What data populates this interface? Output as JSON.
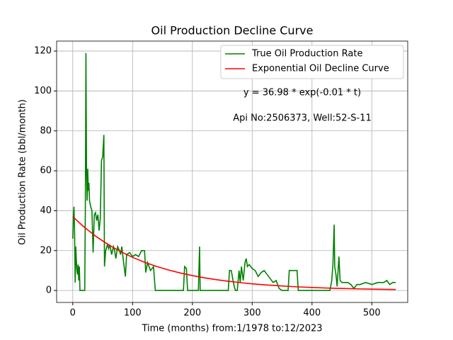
{
  "chart_data": {
    "type": "line",
    "title": "Oil Production Decline Curve",
    "xlabel": "Time (months) from:1/1978 to:12/2023",
    "ylabel": "Oil Production Rate (bbl/month)",
    "annotations": [
      "y = 36.98 * exp(-0.01 * t)",
      "Api No:2506373, Well:52-S-11"
    ],
    "xlim": [
      -27,
      560
    ],
    "ylim": [
      -6,
      125
    ],
    "xticks": [
      0,
      100,
      200,
      300,
      400,
      500
    ],
    "yticks": [
      0,
      20,
      40,
      60,
      80,
      100,
      120
    ],
    "grid": true,
    "legend": "upper right",
    "series": [
      {
        "name": "True Oil Production Rate",
        "color": "#008000",
        "x": [
          0,
          1,
          2,
          3,
          4,
          5,
          6,
          7,
          8,
          9,
          10,
          11,
          12,
          18,
          20,
          21,
          22,
          23,
          24,
          25,
          26,
          27,
          28,
          30,
          32,
          34,
          36,
          38,
          40,
          42,
          44,
          46,
          48,
          50,
          52,
          53,
          55,
          58,
          60,
          62,
          65,
          68,
          70,
          72,
          75,
          78,
          80,
          82,
          85,
          88,
          90,
          95,
          100,
          105,
          110,
          115,
          120,
          122,
          125,
          130,
          135,
          138,
          150,
          185,
          187,
          190,
          192,
          210,
          212,
          213,
          215,
          220,
          260,
          262,
          265,
          268,
          270,
          272,
          275,
          278,
          280,
          282,
          285,
          288,
          290,
          292,
          295,
          300,
          305,
          310,
          315,
          320,
          325,
          330,
          335,
          340,
          345,
          350,
          360,
          362,
          375,
          377,
          430,
          433,
          435,
          437,
          438,
          440,
          442,
          445,
          447,
          450,
          460,
          465,
          470,
          475,
          480,
          490,
          500,
          510,
          520,
          525,
          530,
          535,
          540
        ],
        "values": [
          26,
          37,
          42,
          30,
          4,
          22,
          15,
          10,
          8,
          13,
          5,
          12,
          0,
          0,
          0,
          40,
          119,
          60,
          45,
          61,
          50,
          54,
          45,
          42,
          40,
          19,
          38,
          39,
          35,
          38,
          30,
          36,
          65,
          67,
          78,
          12,
          20,
          23,
          21,
          23,
          18,
          22,
          20,
          16,
          22,
          20,
          18,
          22,
          14,
          7,
          18,
          19,
          17,
          18,
          17,
          20,
          20,
          9,
          14,
          10,
          12,
          0,
          0,
          0,
          12,
          11,
          0,
          0,
          22,
          0,
          0,
          0,
          0,
          10,
          10,
          5,
          2,
          0,
          0,
          10,
          4,
          12,
          5,
          14,
          16,
          12,
          13,
          11,
          10,
          7,
          9,
          10,
          8,
          6,
          4,
          5,
          1,
          0,
          0,
          10,
          10,
          0,
          0,
          5,
          13,
          33,
          12,
          8,
          2,
          17,
          5,
          4,
          4,
          3,
          1,
          3,
          3,
          4,
          3,
          4,
          4,
          5,
          3,
          4,
          4
        ]
      },
      {
        "name": "Exponential Oil Decline Curve",
        "color": "#ff0000",
        "x": [
          0,
          20,
          40,
          60,
          80,
          100,
          120,
          140,
          160,
          180,
          200,
          220,
          240,
          260,
          280,
          300,
          320,
          340,
          360,
          380,
          400,
          420,
          440,
          460,
          480,
          500,
          520,
          540
        ],
        "values": [
          36.98,
          31.51,
          26.85,
          22.88,
          19.5,
          16.61,
          14.16,
          12.06,
          10.28,
          8.76,
          7.47,
          6.36,
          5.42,
          4.62,
          3.94,
          3.35,
          2.86,
          2.44,
          2.08,
          1.77,
          1.51,
          1.28,
          1.09,
          0.93,
          0.79,
          0.68,
          0.58,
          0.49
        ]
      }
    ]
  }
}
